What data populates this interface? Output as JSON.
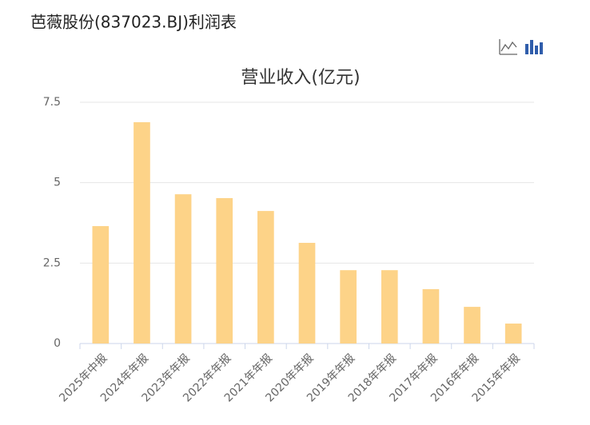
{
  "page_title": "芭薇股份(837023.BJ)利润表",
  "chart_data": {
    "type": "bar",
    "title": "营业收入(亿元)",
    "categories": [
      "2025年中报",
      "2024年年报",
      "2023年年报",
      "2022年年报",
      "2021年年报",
      "2020年年报",
      "2019年年报",
      "2018年年报",
      "2017年年报",
      "2016年年报",
      "2015年年报"
    ],
    "values": [
      3.65,
      6.88,
      4.64,
      4.52,
      4.12,
      3.13,
      2.28,
      2.28,
      1.69,
      1.14,
      0.62
    ],
    "color": "#fdd388",
    "ylim": [
      0,
      7.5
    ],
    "yticks": [
      0,
      2.5,
      5,
      7.5
    ],
    "grid": true
  }
}
